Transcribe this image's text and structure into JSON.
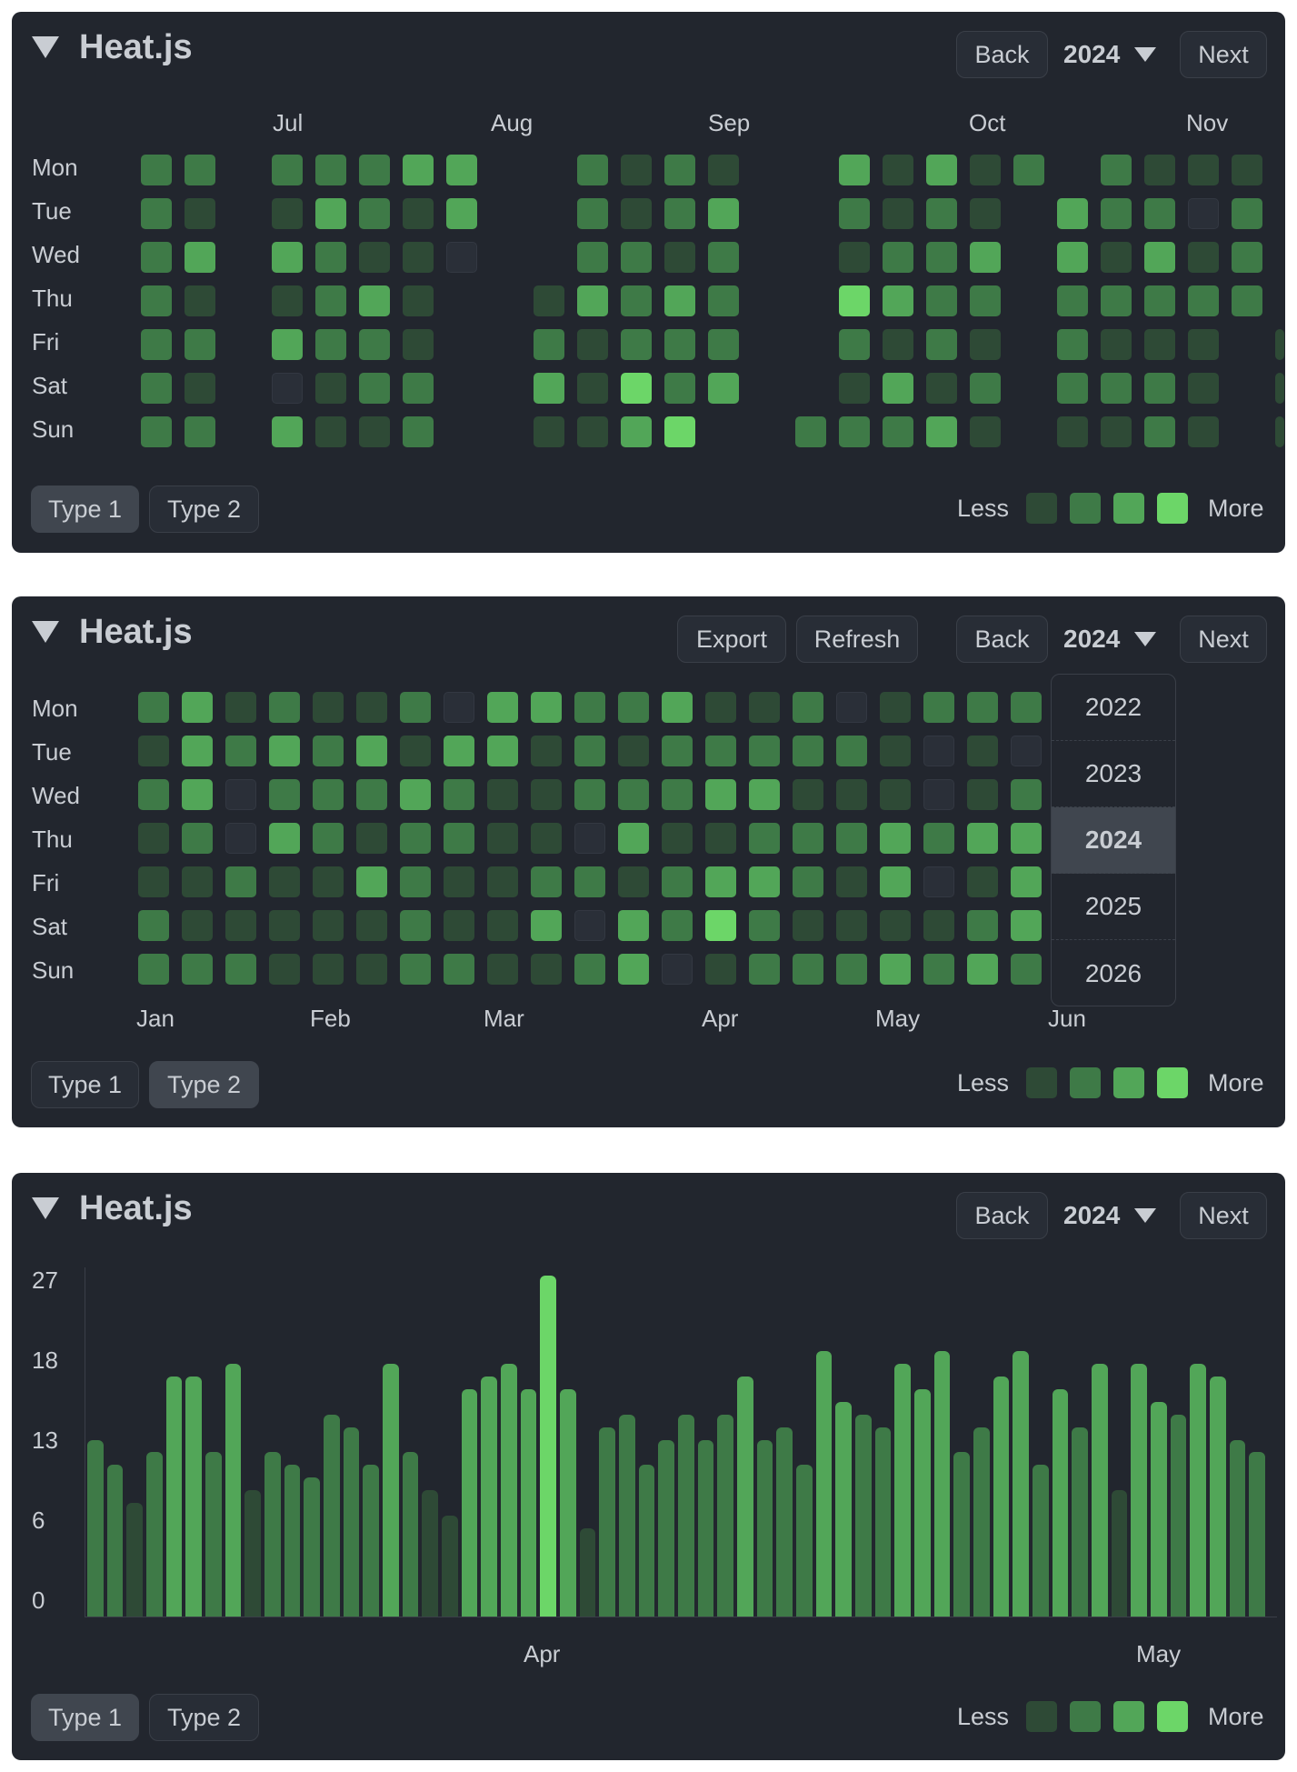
{
  "app_title": "Heat.js",
  "controls": {
    "back": "Back",
    "next": "Next",
    "export": "Export",
    "refresh": "Refresh",
    "year": "2024"
  },
  "type_tabs": [
    "Type 1",
    "Type 2"
  ],
  "legend": {
    "less": "Less",
    "more": "More",
    "colors": [
      "#2e4a36",
      "#3e7a47",
      "#52a658",
      "#6cd668"
    ]
  },
  "days": [
    "Mon",
    "Tue",
    "Wed",
    "Thu",
    "Fri",
    "Sat",
    "Sun"
  ],
  "panel1": {
    "months": [
      "Jul",
      "Aug",
      "Sep",
      "Oct",
      "Nov"
    ],
    "grid": [
      [
        2,
        2,
        2,
        2,
        2,
        2,
        2
      ],
      [
        2,
        1,
        3,
        1,
        2,
        1,
        2
      ],
      null,
      [
        2,
        1,
        3,
        1,
        3,
        0,
        3
      ],
      [
        2,
        3,
        2,
        2,
        2,
        1,
        1
      ],
      [
        2,
        2,
        1,
        3,
        2,
        2,
        1
      ],
      [
        3,
        1,
        1,
        1,
        1,
        2,
        2
      ],
      [
        3,
        3,
        0,
        -1,
        -1,
        -1,
        -1
      ],
      null,
      [
        -1,
        -1,
        -1,
        1,
        2,
        3,
        1
      ],
      [
        2,
        2,
        2,
        3,
        1,
        1,
        1
      ],
      [
        1,
        1,
        2,
        2,
        2,
        4,
        3
      ],
      [
        2,
        2,
        1,
        3,
        2,
        2,
        4
      ],
      [
        1,
        3,
        2,
        2,
        2,
        3,
        -1
      ],
      null,
      [
        -1,
        -1,
        -1,
        -1,
        -1,
        -1,
        2
      ],
      [
        3,
        2,
        1,
        4,
        2,
        1,
        2
      ],
      [
        1,
        1,
        2,
        3,
        1,
        3,
        2
      ],
      [
        3,
        2,
        2,
        2,
        2,
        1,
        3
      ],
      [
        1,
        1,
        3,
        2,
        1,
        2,
        1
      ],
      [
        2,
        -1,
        -1,
        -1,
        -1,
        -1,
        -1
      ],
      [
        -1,
        3,
        3,
        2,
        2,
        2,
        1
      ],
      [
        2,
        2,
        1,
        2,
        1,
        2,
        1
      ],
      [
        1,
        2,
        3,
        2,
        1,
        2,
        2
      ],
      [
        1,
        0,
        1,
        2,
        1,
        1,
        1
      ],
      [
        1,
        2,
        2,
        2,
        -1,
        -1,
        -1
      ],
      [
        -1,
        -1,
        -1,
        -1,
        1,
        1,
        1
      ],
      [
        2,
        2,
        1,
        1,
        2,
        2,
        2
      ]
    ]
  },
  "panel2": {
    "months": [
      "Jan",
      "Feb",
      "Mar",
      "Apr",
      "May",
      "Jun"
    ],
    "years": [
      "2022",
      "2023",
      "2024",
      "2025",
      "2026"
    ],
    "grid": [
      [
        2,
        1,
        2,
        1,
        1,
        2,
        2
      ],
      [
        3,
        3,
        3,
        2,
        1,
        1,
        2
      ],
      [
        1,
        2,
        0,
        0,
        2,
        1,
        2
      ],
      [
        2,
        3,
        2,
        3,
        1,
        1,
        1
      ],
      [
        1,
        2,
        2,
        2,
        1,
        1,
        1
      ],
      [
        1,
        3,
        2,
        1,
        3,
        1,
        1
      ],
      [
        2,
        1,
        3,
        2,
        2,
        2,
        2
      ],
      [
        0,
        3,
        2,
        2,
        1,
        1,
        2
      ],
      [
        3,
        3,
        1,
        1,
        1,
        1,
        1
      ],
      [
        3,
        1,
        1,
        1,
        2,
        3,
        1
      ],
      [
        2,
        2,
        2,
        0,
        2,
        0,
        2
      ],
      [
        2,
        1,
        2,
        3,
        1,
        3,
        3
      ],
      [
        3,
        2,
        2,
        1,
        2,
        2,
        0
      ],
      [
        1,
        2,
        3,
        1,
        3,
        4,
        1
      ],
      [
        1,
        2,
        3,
        2,
        3,
        2,
        2
      ],
      [
        2,
        2,
        1,
        2,
        2,
        1,
        2
      ],
      [
        0,
        2,
        1,
        2,
        1,
        1,
        2
      ],
      [
        1,
        1,
        1,
        3,
        3,
        1,
        3
      ],
      [
        2,
        0,
        0,
        2,
        0,
        1,
        2
      ],
      [
        2,
        1,
        1,
        3,
        1,
        2,
        3
      ],
      [
        2,
        0,
        2,
        3,
        3,
        3,
        2
      ]
    ]
  },
  "panel3": {
    "chart_data": {
      "type": "bar",
      "ylabel_ticks": [
        "27",
        "18",
        "13",
        "6",
        "0"
      ],
      "ylim": [
        0,
        27
      ],
      "x_ticks": [
        "Apr",
        "May"
      ],
      "values": [
        14,
        12,
        9,
        13,
        19,
        19,
        13,
        20,
        10,
        13,
        12,
        11,
        16,
        15,
        12,
        20,
        13,
        10,
        8,
        18,
        19,
        20,
        18,
        27,
        18,
        7,
        15,
        16,
        12,
        14,
        16,
        14,
        16,
        19,
        14,
        15,
        12,
        21,
        17,
        16,
        15,
        20,
        18,
        21,
        13,
        15,
        19,
        21,
        12,
        18,
        15,
        20,
        10,
        20,
        17,
        16,
        20,
        19,
        14,
        13
      ]
    }
  }
}
